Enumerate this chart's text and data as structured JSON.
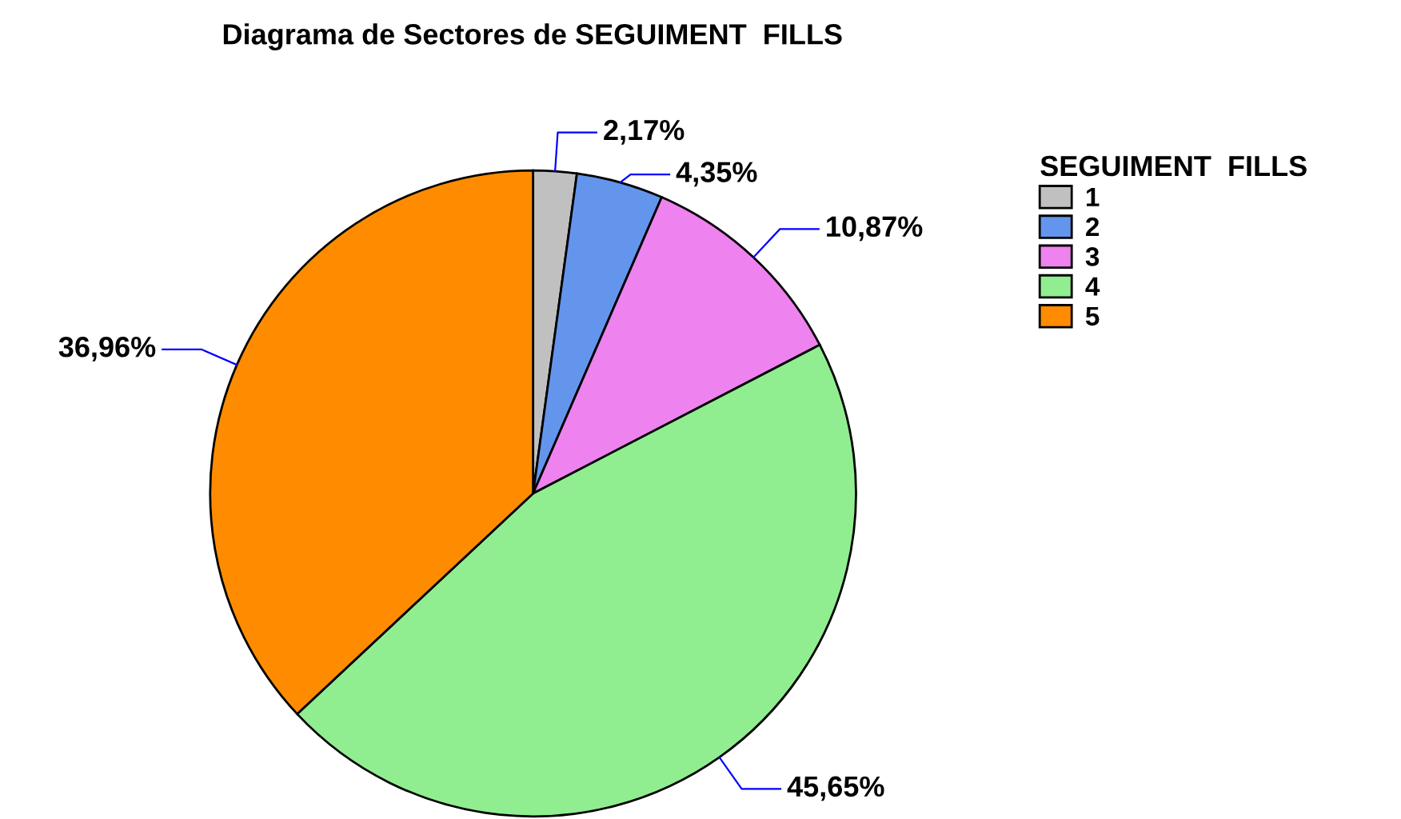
{
  "chart_data": {
    "type": "pie",
    "title": "Diagrama de Sectores de SEGUIMENT  FILLS",
    "legend_title": "SEGUIMENT  FILLS",
    "legend": "right",
    "categories": [
      "1",
      "2",
      "3",
      "4",
      "5"
    ],
    "values": [
      2.17,
      4.35,
      10.87,
      45.65,
      36.96
    ],
    "value_labels": [
      "2,17%",
      "4,35%",
      "10,87%",
      "45,65%",
      "36,96%"
    ],
    "colors": [
      "#c0c0c0",
      "#6495ed",
      "#ee82ee",
      "#90ee90",
      "#ff8c00"
    ]
  }
}
